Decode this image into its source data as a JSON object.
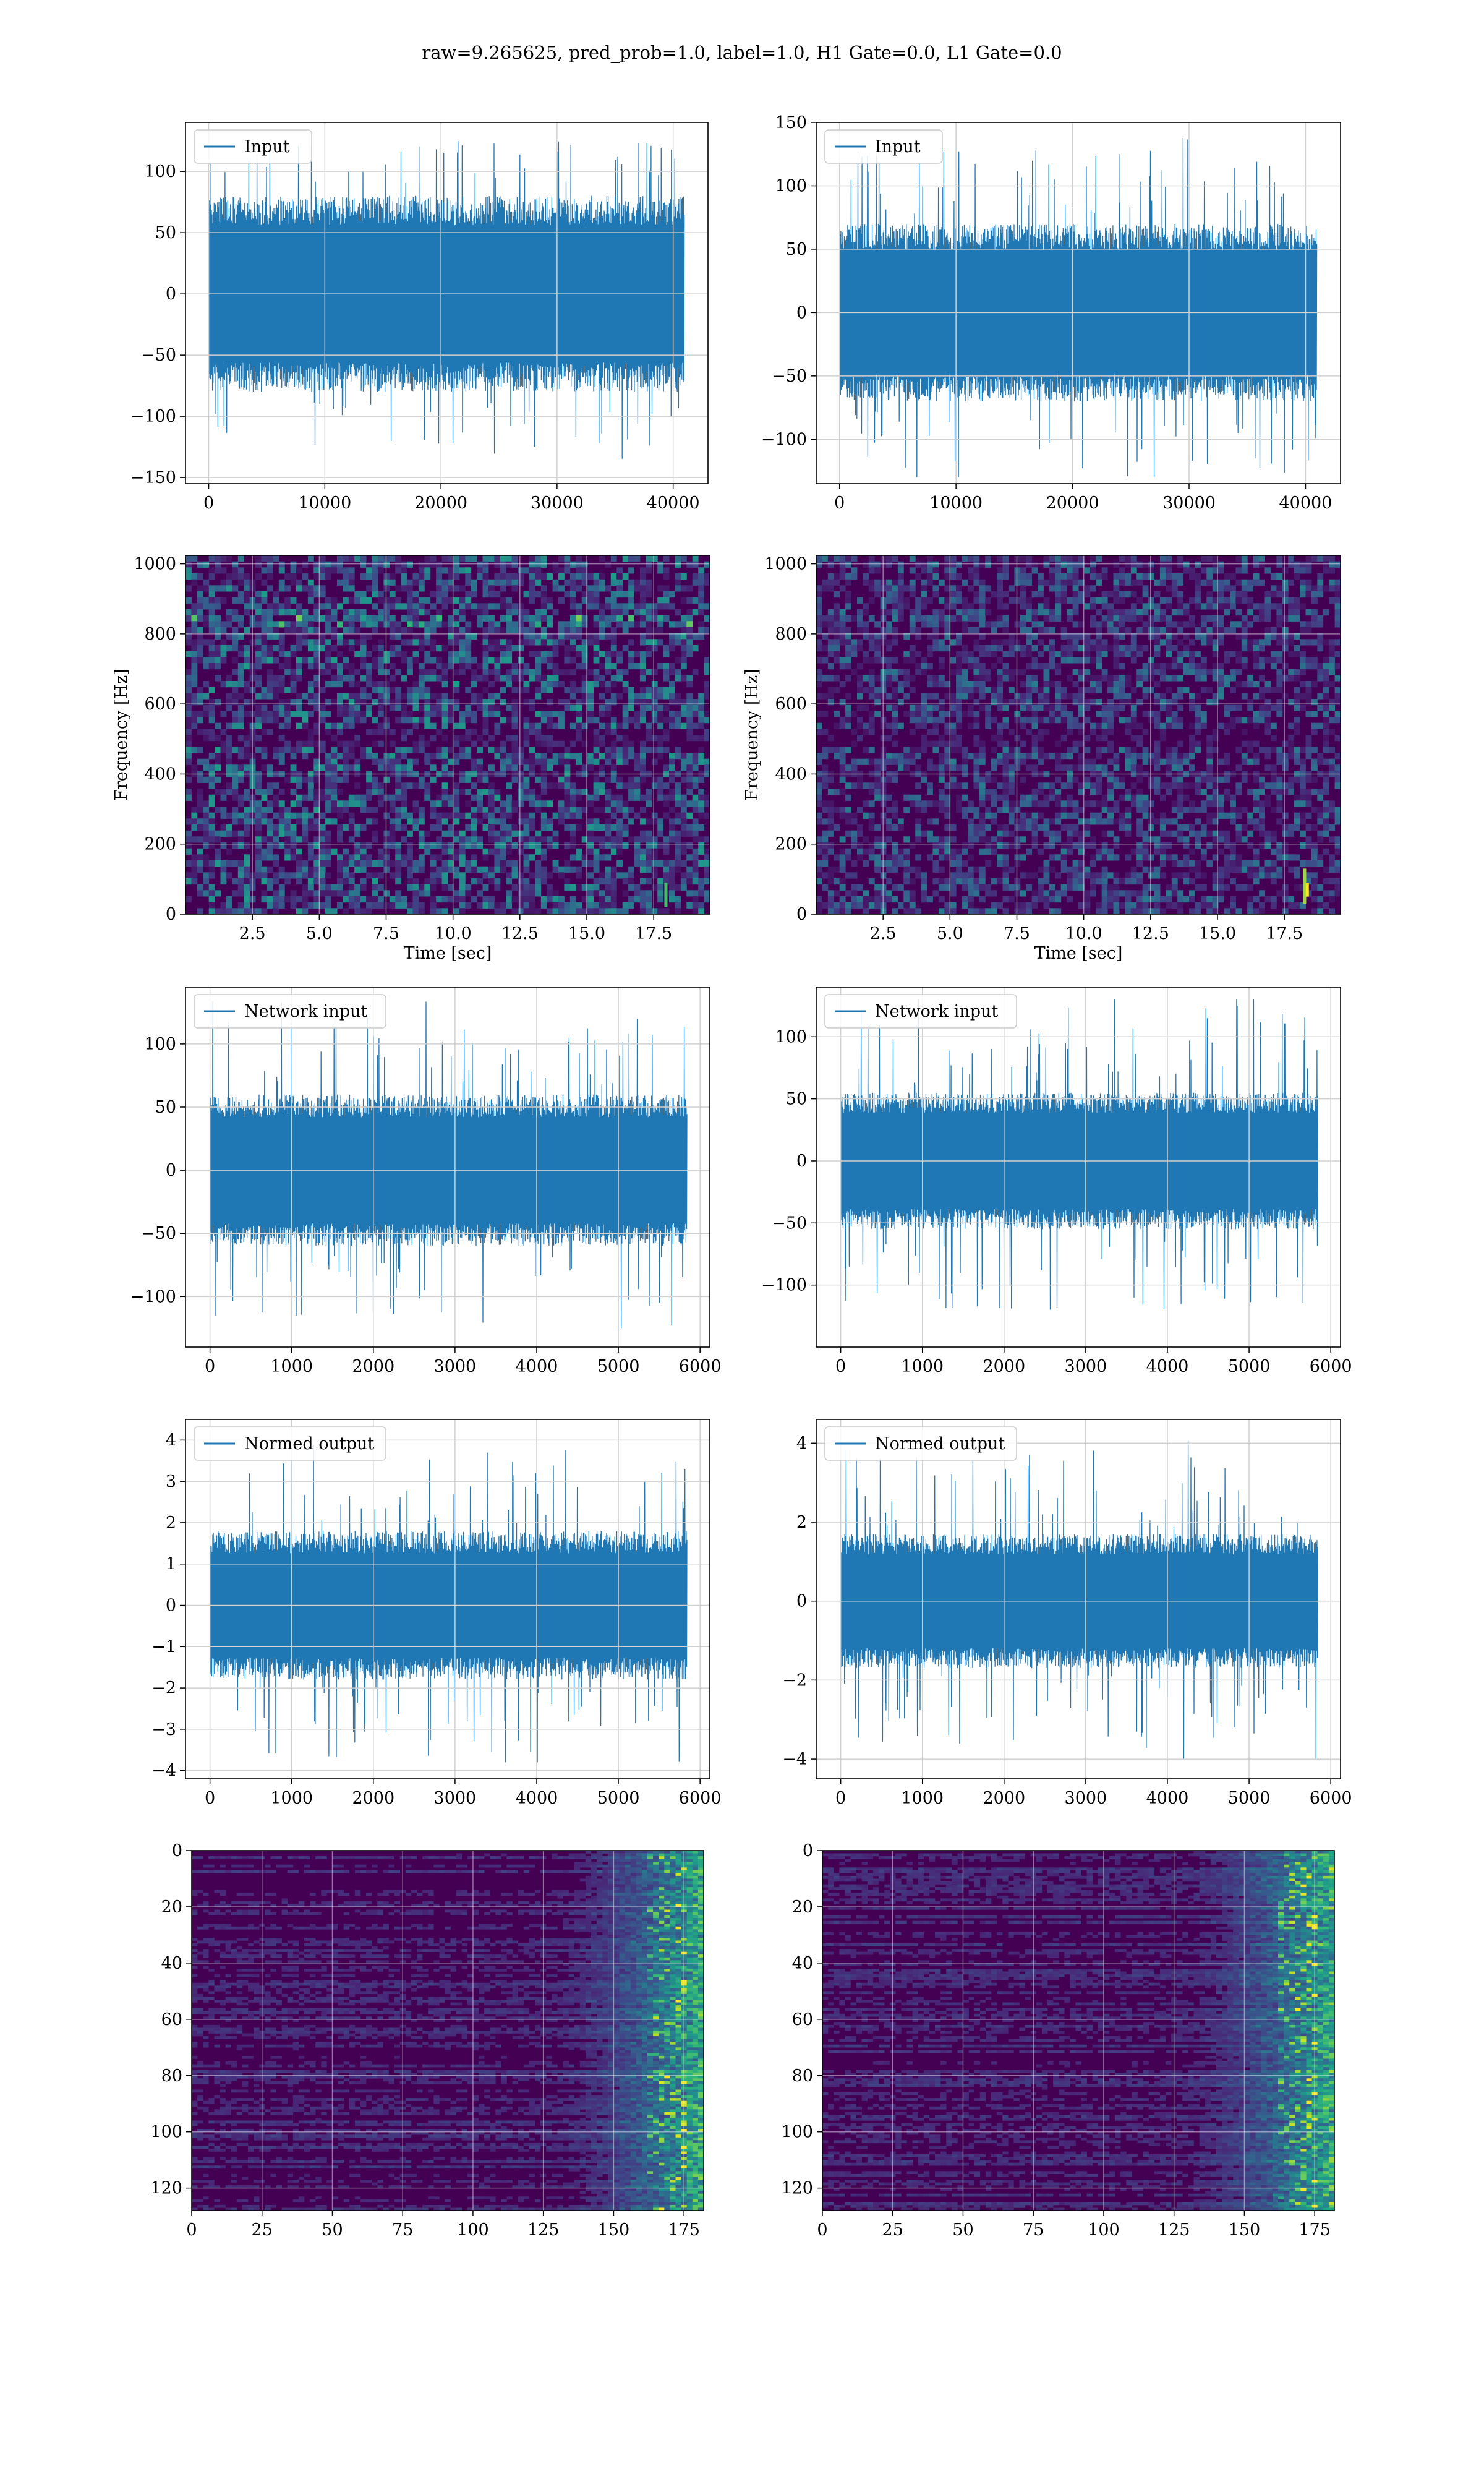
{
  "figure": {
    "suptitle": "raw=9.265625, pred_prob=1.0, label=1.0, H1 Gate=0.0, L1 Gate=0.0"
  },
  "colors": {
    "line": "#1f77b4",
    "grid": "#d0d0d0",
    "viridis_dark": "#440154",
    "viridis_mid": "#21918c",
    "viridis_bright": "#fde725"
  },
  "chart_data": [
    {
      "id": "input-h1",
      "type": "line",
      "legend": "Input",
      "legend_loc": "upper-left",
      "grid": true,
      "xlim": [
        -2000,
        43000
      ],
      "ylim": [
        -155,
        140
      ],
      "xticks": [
        0,
        10000,
        20000,
        30000,
        40000
      ],
      "yticks": [
        -150,
        -100,
        -50,
        0,
        50,
        100
      ],
      "xticklabels": [
        "0",
        "10000",
        "20000",
        "30000",
        "40000"
      ],
      "yticklabels": [
        "−150",
        "−100",
        "−50",
        "0",
        "50",
        "100"
      ],
      "series": [
        {
          "x_range": [
            0,
            40960
          ],
          "envelope": [
            -80,
            80
          ],
          "extreme": [
            -135,
            135
          ]
        }
      ]
    },
    {
      "id": "input-l1",
      "type": "line",
      "legend": "Input",
      "legend_loc": "upper-left",
      "grid": true,
      "xlim": [
        -2000,
        43000
      ],
      "ylim": [
        -135,
        150
      ],
      "xticks": [
        0,
        10000,
        20000,
        30000,
        40000
      ],
      "yticks": [
        -100,
        -50,
        0,
        50,
        100,
        150
      ],
      "xticklabels": [
        "0",
        "10000",
        "20000",
        "30000",
        "40000"
      ],
      "yticklabels": [
        "−100",
        "−50",
        "0",
        "50",
        "100",
        "150"
      ],
      "series": [
        {
          "x_range": [
            0,
            40960
          ],
          "envelope": [
            -70,
            70
          ],
          "extreme": [
            -130,
            140
          ]
        }
      ]
    },
    {
      "id": "spec-h1",
      "type": "heatmap",
      "grid": true,
      "xlabel": "Time [sec]",
      "ylabel": "Frequency [Hz]",
      "xlim": [
        0,
        19.6
      ],
      "ylim": [
        0,
        1024
      ],
      "xticks": [
        2.5,
        5.0,
        7.5,
        10.0,
        12.5,
        15.0,
        17.5
      ],
      "yticks": [
        0,
        200,
        400,
        600,
        800,
        1000
      ],
      "xticklabels": [
        "2.5",
        "5.0",
        "7.5",
        "10.0",
        "12.5",
        "15.0",
        "17.5"
      ],
      "yticklabels": [
        "0",
        "200",
        "400",
        "600",
        "800",
        "1000"
      ]
    },
    {
      "id": "spec-l1",
      "type": "heatmap",
      "grid": true,
      "xlabel": "Time [sec]",
      "ylabel": "Frequency [Hz]",
      "xlim": [
        0,
        19.6
      ],
      "ylim": [
        0,
        1024
      ],
      "xticks": [
        2.5,
        5.0,
        7.5,
        10.0,
        12.5,
        15.0,
        17.5
      ],
      "yticks": [
        0,
        200,
        400,
        600,
        800,
        1000
      ],
      "xticklabels": [
        "2.5",
        "5.0",
        "7.5",
        "10.0",
        "12.5",
        "15.0",
        "17.5"
      ],
      "yticklabels": [
        "0",
        "200",
        "400",
        "600",
        "800",
        "1000"
      ]
    },
    {
      "id": "net-h1",
      "type": "line",
      "legend": "Network input",
      "legend_loc": "upper-left",
      "grid": true,
      "xlim": [
        -300,
        6120
      ],
      "ylim": [
        -140,
        145
      ],
      "xticks": [
        0,
        1000,
        2000,
        3000,
        4000,
        5000,
        6000
      ],
      "yticks": [
        -100,
        -50,
        0,
        50,
        100
      ],
      "xticklabels": [
        "0",
        "1000",
        "2000",
        "3000",
        "4000",
        "5000",
        "6000"
      ],
      "yticklabels": [
        "−100",
        "−50",
        "0",
        "50",
        "100"
      ],
      "series": [
        {
          "x_range": [
            0,
            5840
          ],
          "envelope": [
            -60,
            60
          ],
          "extreme": [
            -125,
            135
          ]
        }
      ]
    },
    {
      "id": "net-l1",
      "type": "line",
      "legend": "Network input",
      "legend_loc": "upper-left",
      "grid": true,
      "xlim": [
        -300,
        6120
      ],
      "ylim": [
        -150,
        140
      ],
      "xticks": [
        0,
        1000,
        2000,
        3000,
        4000,
        5000,
        6000
      ],
      "yticks": [
        -100,
        -50,
        0,
        50,
        100
      ],
      "xticklabels": [
        "0",
        "1000",
        "2000",
        "3000",
        "4000",
        "5000",
        "6000"
      ],
      "yticklabels": [
        "−100",
        "−50",
        "0",
        "50",
        "100"
      ],
      "series": [
        {
          "x_range": [
            0,
            5840
          ],
          "envelope": [
            -55,
            55
          ],
          "extreme": [
            -135,
            130
          ]
        }
      ]
    },
    {
      "id": "norm-h1",
      "type": "line",
      "legend": "Normed output",
      "legend_loc": "upper-left",
      "grid": true,
      "xlim": [
        -300,
        6120
      ],
      "ylim": [
        -4.2,
        4.5
      ],
      "xticks": [
        0,
        1000,
        2000,
        3000,
        4000,
        5000,
        6000
      ],
      "yticks": [
        -4,
        -3,
        -2,
        -1,
        0,
        1,
        2,
        3,
        4
      ],
      "xticklabels": [
        "0",
        "1000",
        "2000",
        "3000",
        "4000",
        "5000",
        "6000"
      ],
      "yticklabels": [
        "−4",
        "−3",
        "−2",
        "−1",
        "0",
        "1",
        "2",
        "3",
        "4"
      ],
      "series": [
        {
          "x_range": [
            0,
            5840
          ],
          "envelope": [
            -1.8,
            1.8
          ],
          "extreme": [
            -3.8,
            4.1
          ]
        }
      ]
    },
    {
      "id": "norm-l1",
      "type": "line",
      "legend": "Normed output",
      "legend_loc": "upper-left",
      "grid": true,
      "xlim": [
        -300,
        6120
      ],
      "ylim": [
        -4.5,
        4.6
      ],
      "xticks": [
        0,
        1000,
        2000,
        3000,
        4000,
        5000,
        6000
      ],
      "yticks": [
        -4,
        -2,
        0,
        2,
        4
      ],
      "xticklabels": [
        "0",
        "1000",
        "2000",
        "3000",
        "4000",
        "5000",
        "6000"
      ],
      "yticklabels": [
        "−4",
        "−2",
        "0",
        "2",
        "4"
      ],
      "series": [
        {
          "x_range": [
            0,
            5840
          ],
          "envelope": [
            -1.7,
            1.7
          ],
          "extreme": [
            -4.0,
            4.2
          ]
        }
      ]
    },
    {
      "id": "feat-h1",
      "type": "heatmap",
      "grid": true,
      "y_inverted": true,
      "xlim": [
        0,
        182
      ],
      "ylim": [
        128,
        0
      ],
      "xticks": [
        0,
        25,
        50,
        75,
        100,
        125,
        150,
        175
      ],
      "yticks": [
        0,
        20,
        40,
        60,
        80,
        100,
        120
      ],
      "xticklabels": [
        "0",
        "25",
        "50",
        "75",
        "100",
        "125",
        "150",
        "175"
      ],
      "yticklabels": [
        "0",
        "20",
        "40",
        "60",
        "80",
        "100",
        "120"
      ]
    },
    {
      "id": "feat-l1",
      "type": "heatmap",
      "grid": true,
      "y_inverted": true,
      "xlim": [
        0,
        182
      ],
      "ylim": [
        128,
        0
      ],
      "xticks": [
        0,
        25,
        50,
        75,
        100,
        125,
        150,
        175
      ],
      "yticks": [
        0,
        20,
        40,
        60,
        80,
        100,
        120
      ],
      "xticklabels": [
        "0",
        "25",
        "50",
        "75",
        "100",
        "125",
        "150",
        "175"
      ],
      "yticklabels": [
        "0",
        "20",
        "40",
        "60",
        "80",
        "100",
        "120"
      ]
    }
  ]
}
